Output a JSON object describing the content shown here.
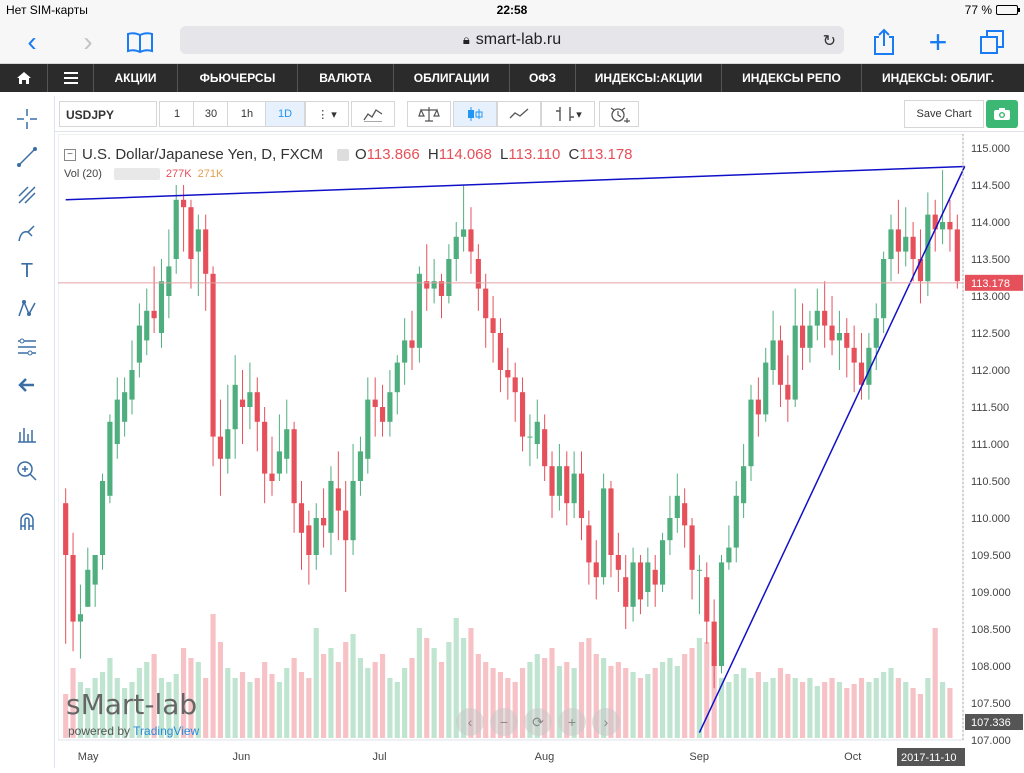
{
  "status": {
    "carrier": "Нет SIM-карты",
    "time": "22:58",
    "battery": "77 %",
    "battery_level": 0.77
  },
  "browser": {
    "url": "smart-lab.ru"
  },
  "nav": {
    "items": [
      "АКЦИИ",
      "ФЬЮЧЕРСЫ",
      "ВАЛЮТА",
      "ОБЛИГАЦИИ",
      "ОФЗ",
      "ИНДЕКСЫ:АКЦИИ",
      "ИНДЕКСЫ РЕПО",
      "ИНДЕКСЫ: ОБЛИГ."
    ]
  },
  "toolbar": {
    "symbol": "USDJPY",
    "intervals": [
      "1",
      "30",
      "1h",
      "1D"
    ],
    "active_interval": "1D",
    "save_label": "Save Chart"
  },
  "legend": {
    "title": "U.S. Dollar/Japanese Yen, D, FXCM",
    "o_label": "O",
    "o": "113.866",
    "h_label": "H",
    "h": "114.068",
    "l_label": "L",
    "l": "113.110",
    "c_label": "C",
    "c": "113.178",
    "vol_label": "Vol (20)",
    "vol1": "277K",
    "vol2": "271K"
  },
  "branding": {
    "watermark": "sMart-lab",
    "powered": "powered by",
    "powered_brand": "TradingView"
  },
  "colors": {
    "up": "#4fae7e",
    "down": "#e5505a",
    "vol_up": "#bfe5d0",
    "vol_down": "#f6c2c6",
    "trendline": "#1010c8",
    "price_tag": "#e5505a",
    "vol_tag": "#555555"
  },
  "chart_data": {
    "type": "candlestick",
    "symbol": "USDJPY",
    "y_ticks": [
      "115.000",
      "114.500",
      "114.000",
      "113.500",
      "113.000",
      "112.500",
      "112.000",
      "111.500",
      "111.000",
      "110.500",
      "110.000",
      "109.500",
      "109.000",
      "108.500",
      "108.000",
      "107.500",
      "107.000"
    ],
    "ylim": [
      107.0,
      115.0
    ],
    "x_ticks": [
      "May",
      "Jun",
      "Jul",
      "Aug",
      "Sep",
      "Oct"
    ],
    "last_price": "113.178",
    "volume_label": "107.336",
    "date_label": "2017-11-10",
    "candles": [
      [
        110.2,
        109.5,
        110.4,
        108.3
      ],
      [
        109.5,
        108.6,
        109.8,
        108.2
      ],
      [
        108.6,
        108.7,
        109.1,
        108.1
      ],
      [
        108.8,
        109.3,
        109.6,
        108.8
      ],
      [
        109.1,
        109.5,
        109.5,
        108.8
      ],
      [
        109.5,
        110.5,
        110.6,
        109.3
      ],
      [
        110.3,
        111.3,
        111.4,
        110.2
      ],
      [
        111.0,
        111.6,
        111.9,
        110.8
      ],
      [
        111.3,
        111.7,
        111.9,
        111.1
      ],
      [
        111.6,
        112.0,
        112.4,
        111.4
      ],
      [
        112.1,
        112.6,
        112.9,
        111.9
      ],
      [
        112.4,
        112.8,
        113.1,
        112.2
      ],
      [
        112.8,
        112.7,
        113.4,
        112.5
      ],
      [
        112.5,
        113.2,
        113.5,
        112.3
      ],
      [
        113.0,
        113.4,
        113.9,
        112.7
      ],
      [
        113.5,
        114.3,
        114.5,
        113.3
      ],
      [
        114.3,
        114.2,
        114.5,
        113.6
      ],
      [
        114.2,
        113.5,
        114.3,
        113.1
      ],
      [
        113.6,
        113.9,
        114.1,
        113.0
      ],
      [
        113.9,
        113.3,
        114.1,
        112.8
      ],
      [
        113.3,
        111.1,
        113.4,
        110.7
      ],
      [
        111.1,
        110.8,
        111.6,
        110.3
      ],
      [
        110.8,
        111.2,
        111.8,
        110.6
      ],
      [
        111.2,
        111.8,
        112.2,
        110.8
      ],
      [
        111.6,
        111.5,
        112.0,
        111.0
      ],
      [
        111.5,
        111.7,
        112.1,
        111.2
      ],
      [
        111.7,
        111.3,
        111.9,
        110.9
      ],
      [
        111.3,
        110.6,
        111.5,
        110.2
      ],
      [
        110.6,
        110.5,
        111.1,
        110.3
      ],
      [
        110.6,
        110.9,
        111.4,
        110.5
      ],
      [
        110.8,
        111.2,
        111.6,
        110.6
      ],
      [
        111.2,
        110.2,
        111.3,
        109.8
      ],
      [
        110.2,
        109.8,
        110.5,
        109.3
      ],
      [
        109.9,
        109.5,
        110.1,
        109.1
      ],
      [
        109.5,
        110.0,
        110.2,
        109.3
      ],
      [
        110.0,
        109.9,
        110.4,
        109.6
      ],
      [
        109.8,
        110.5,
        110.7,
        109.5
      ],
      [
        110.4,
        110.1,
        110.9,
        109.7
      ],
      [
        110.1,
        109.7,
        110.5,
        109.0
      ],
      [
        109.7,
        110.5,
        111.0,
        109.5
      ],
      [
        110.5,
        110.9,
        111.1,
        110.3
      ],
      [
        110.8,
        111.6,
        111.9,
        110.6
      ],
      [
        111.6,
        111.5,
        111.9,
        111.1
      ],
      [
        111.5,
        111.3,
        111.8,
        111.1
      ],
      [
        111.3,
        111.7,
        112.0,
        111.1
      ],
      [
        111.7,
        112.1,
        112.2,
        111.4
      ],
      [
        112.1,
        112.4,
        112.7,
        111.8
      ],
      [
        112.4,
        112.3,
        112.8,
        112.0
      ],
      [
        112.3,
        113.3,
        113.4,
        112.1
      ],
      [
        113.2,
        113.1,
        113.7,
        112.8
      ],
      [
        113.1,
        113.2,
        113.5,
        112.9
      ],
      [
        113.2,
        113.0,
        113.3,
        112.7
      ],
      [
        113.0,
        113.5,
        113.7,
        112.9
      ],
      [
        113.5,
        113.8,
        114.0,
        113.2
      ],
      [
        113.8,
        113.9,
        114.5,
        113.6
      ],
      [
        113.9,
        113.6,
        114.2,
        113.3
      ],
      [
        113.5,
        113.1,
        113.7,
        112.8
      ],
      [
        113.1,
        112.7,
        113.3,
        112.3
      ],
      [
        112.7,
        112.5,
        113.0,
        112.1
      ],
      [
        112.5,
        112.0,
        112.7,
        111.7
      ],
      [
        112.0,
        111.9,
        112.3,
        111.6
      ],
      [
        111.9,
        111.7,
        112.1,
        111.3
      ],
      [
        111.7,
        111.1,
        111.9,
        110.9
      ],
      [
        111.1,
        111.1,
        111.4,
        110.7
      ],
      [
        111.0,
        111.3,
        111.6,
        110.8
      ],
      [
        111.2,
        110.7,
        111.4,
        110.5
      ],
      [
        110.7,
        110.3,
        110.9,
        110.0
      ],
      [
        110.3,
        110.7,
        111.0,
        110.1
      ],
      [
        110.7,
        110.2,
        110.9,
        109.9
      ],
      [
        110.2,
        110.6,
        110.9,
        110.0
      ],
      [
        110.6,
        110.0,
        110.9,
        109.7
      ],
      [
        109.9,
        109.4,
        110.1,
        109.1
      ],
      [
        109.4,
        109.2,
        109.7,
        108.9
      ],
      [
        109.2,
        110.4,
        110.6,
        109.1
      ],
      [
        110.4,
        109.5,
        110.5,
        109.2
      ],
      [
        109.5,
        109.3,
        109.8,
        109.0
      ],
      [
        109.2,
        108.8,
        109.5,
        108.5
      ],
      [
        108.8,
        109.4,
        109.6,
        108.6
      ],
      [
        109.4,
        108.9,
        109.5,
        108.7
      ],
      [
        109.0,
        109.4,
        109.6,
        108.8
      ],
      [
        109.3,
        109.1,
        109.5,
        108.8
      ],
      [
        109.1,
        109.7,
        109.8,
        109.0
      ],
      [
        109.7,
        110.0,
        110.3,
        109.5
      ],
      [
        110.0,
        110.3,
        110.6,
        109.8
      ],
      [
        110.2,
        109.9,
        110.4,
        109.6
      ],
      [
        109.9,
        109.3,
        110.0,
        108.9
      ],
      [
        109.3,
        109.3,
        109.5,
        108.7
      ],
      [
        109.2,
        108.6,
        109.4,
        108.3
      ],
      [
        108.6,
        108.0,
        108.9,
        107.7
      ],
      [
        108.0,
        109.4,
        109.5,
        107.9
      ],
      [
        109.4,
        109.6,
        109.9,
        109.3
      ],
      [
        109.6,
        110.3,
        110.5,
        109.4
      ],
      [
        110.2,
        110.7,
        111.0,
        110.0
      ],
      [
        110.7,
        111.6,
        111.8,
        110.5
      ],
      [
        111.6,
        111.4,
        111.9,
        111.1
      ],
      [
        111.4,
        112.1,
        112.3,
        111.3
      ],
      [
        112.0,
        112.4,
        112.8,
        111.8
      ],
      [
        112.4,
        111.8,
        112.6,
        111.5
      ],
      [
        111.8,
        111.6,
        112.2,
        111.3
      ],
      [
        111.6,
        112.6,
        113.1,
        111.5
      ],
      [
        112.6,
        112.3,
        112.9,
        112.0
      ],
      [
        112.3,
        112.6,
        112.8,
        112.1
      ],
      [
        112.6,
        112.8,
        113.1,
        112.4
      ],
      [
        112.8,
        112.6,
        113.2,
        112.3
      ],
      [
        112.6,
        112.4,
        113.0,
        112.2
      ],
      [
        112.4,
        112.5,
        112.8,
        112.0
      ],
      [
        112.5,
        112.3,
        112.7,
        111.9
      ],
      [
        112.3,
        112.1,
        112.6,
        111.7
      ],
      [
        112.1,
        111.8,
        112.5,
        111.6
      ],
      [
        111.8,
        112.3,
        112.5,
        111.6
      ],
      [
        112.3,
        112.7,
        112.9,
        112.0
      ],
      [
        112.7,
        113.5,
        113.6,
        112.5
      ],
      [
        113.5,
        113.9,
        114.1,
        113.2
      ],
      [
        113.9,
        113.6,
        114.3,
        113.3
      ],
      [
        113.6,
        113.8,
        114.2,
        113.4
      ],
      [
        113.8,
        113.5,
        114.0,
        113.2
      ],
      [
        113.5,
        113.2,
        113.9,
        112.9
      ],
      [
        113.2,
        114.1,
        114.4,
        113.0
      ],
      [
        114.1,
        113.9,
        114.3,
        113.6
      ],
      [
        113.9,
        114.0,
        114.7,
        113.7
      ],
      [
        114.0,
        113.9,
        114.3,
        113.6
      ],
      [
        113.9,
        113.2,
        114.1,
        113.1
      ]
    ],
    "volume": [
      0.22,
      0.35,
      0.28,
      0.25,
      0.3,
      0.33,
      0.4,
      0.3,
      0.25,
      0.28,
      0.35,
      0.38,
      0.42,
      0.3,
      0.28,
      0.32,
      0.45,
      0.4,
      0.38,
      0.3,
      0.62,
      0.48,
      0.35,
      0.3,
      0.33,
      0.28,
      0.3,
      0.38,
      0.32,
      0.28,
      0.35,
      0.4,
      0.33,
      0.3,
      0.55,
      0.42,
      0.45,
      0.38,
      0.48,
      0.52,
      0.4,
      0.35,
      0.38,
      0.42,
      0.3,
      0.28,
      0.35,
      0.4,
      0.55,
      0.5,
      0.45,
      0.38,
      0.48,
      0.6,
      0.5,
      0.55,
      0.42,
      0.38,
      0.35,
      0.33,
      0.3,
      0.28,
      0.35,
      0.38,
      0.42,
      0.4,
      0.45,
      0.36,
      0.38,
      0.35,
      0.48,
      0.5,
      0.42,
      0.4,
      0.36,
      0.38,
      0.35,
      0.33,
      0.3,
      0.32,
      0.35,
      0.38,
      0.4,
      0.36,
      0.42,
      0.45,
      0.5,
      0.48,
      0.4,
      0.3,
      0.28,
      0.32,
      0.35,
      0.3,
      0.33,
      0.28,
      0.3,
      0.35,
      0.32,
      0.3,
      0.28,
      0.3,
      0.26,
      0.28,
      0.3,
      0.28,
      0.25,
      0.27,
      0.3,
      0.28,
      0.3,
      0.33,
      0.35,
      0.3,
      0.28,
      0.25,
      0.22,
      0.3,
      0.55,
      0.28,
      0.25
    ],
    "trendlines": [
      {
        "from": [
          0,
          114.3
        ],
        "to": [
          122,
          114.75
        ]
      },
      {
        "from": [
          86,
          107.1
        ],
        "to": [
          122,
          114.75
        ]
      }
    ]
  }
}
